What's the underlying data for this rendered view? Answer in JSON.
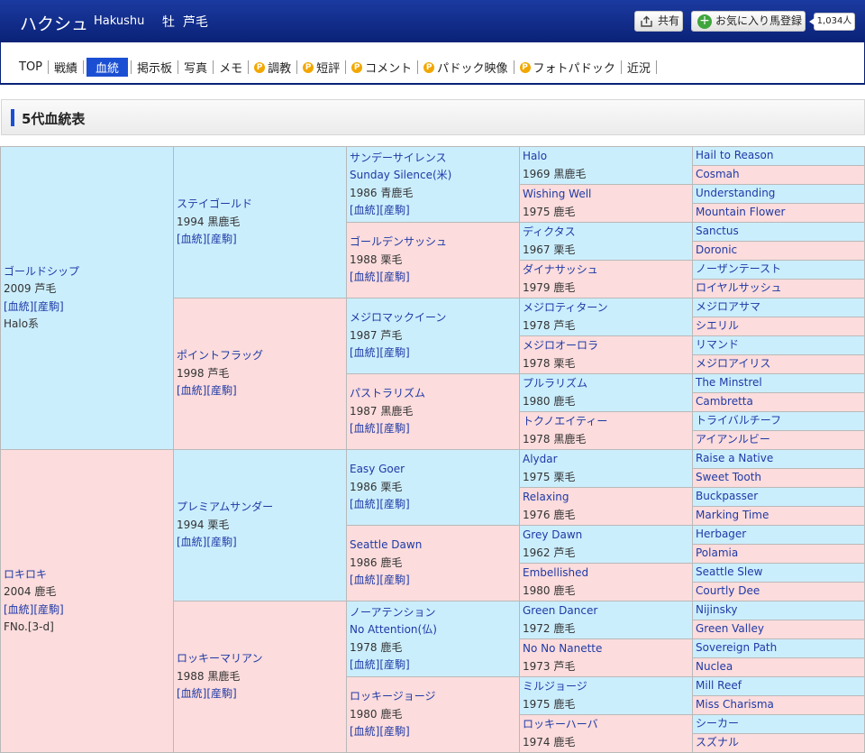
{
  "header": {
    "name_jp": "ハクシュ",
    "name_en": "Hakushu",
    "sex_color": "牡  芦毛",
    "share_label": "共有",
    "favorite_label": "お気に入り馬登録",
    "favorite_count": "1,034人"
  },
  "nav": {
    "items": [
      {
        "label": "TOP"
      },
      {
        "label": "戦績"
      },
      {
        "label": "血統"
      },
      {
        "label": "掲示板"
      },
      {
        "label": "写真"
      },
      {
        "label": "メモ"
      },
      {
        "label": "調教"
      },
      {
        "label": "短評"
      },
      {
        "label": "コメント"
      },
      {
        "label": "パドック映像"
      },
      {
        "label": "フォトパドック"
      },
      {
        "label": "近況"
      }
    ],
    "p_mark": "P"
  },
  "section_title": "5代血統表",
  "link_text": "[血統][産駒]",
  "colors": {
    "blue": "#cbeefd",
    "pink": "#fcdcdc",
    "link": "#1f3aa6",
    "header": "#0a2277"
  },
  "pedigree": {
    "g1": [
      {
        "name": "ゴールドシップ",
        "info": "2009 芦毛",
        "extra": "Halo系"
      },
      {
        "name": "ロキロキ",
        "info": "2004 鹿毛",
        "extra": "FNo.[3-d]"
      }
    ],
    "g2": [
      {
        "name": "ステイゴールド",
        "info": "1994 黒鹿毛"
      },
      {
        "name": "ポイントフラッグ",
        "info": "1998 芦毛"
      },
      {
        "name": "プレミアムサンダー",
        "info": "1994 栗毛"
      },
      {
        "name": "ロッキーマリアン",
        "info": "1988 黒鹿毛"
      }
    ],
    "g3": [
      {
        "name": "サンデーサイレンス",
        "name2": "Sunday Silence(米)",
        "info": "1986 青鹿毛"
      },
      {
        "name": "ゴールデンサッシュ",
        "info": "1988 栗毛"
      },
      {
        "name": "メジロマックイーン",
        "info": "1987 芦毛"
      },
      {
        "name": "パストラリズム",
        "info": "1987 黒鹿毛"
      },
      {
        "name": "Easy Goer",
        "info": "1986 栗毛"
      },
      {
        "name": "Seattle Dawn",
        "info": "1986 鹿毛"
      },
      {
        "name": "ノーアテンション",
        "name2": "No Attention(仏)",
        "info": "1978 鹿毛"
      },
      {
        "name": "ロッキージョージ",
        "info": "1980 鹿毛"
      }
    ],
    "g4": [
      {
        "name": "Halo",
        "info": "1969 黒鹿毛"
      },
      {
        "name": "Wishing Well",
        "info": "1975 鹿毛"
      },
      {
        "name": "ディクタス",
        "info": "1967 栗毛"
      },
      {
        "name": "ダイナサッシュ",
        "info": "1979 鹿毛"
      },
      {
        "name": "メジロティターン",
        "info": "1978 芦毛"
      },
      {
        "name": "メジロオーロラ",
        "info": "1978 栗毛"
      },
      {
        "name": "プルラリズム",
        "info": "1980 鹿毛"
      },
      {
        "name": "トクノエイティー",
        "info": "1978 黒鹿毛"
      },
      {
        "name": "Alydar",
        "info": "1975 栗毛"
      },
      {
        "name": "Relaxing",
        "info": "1976 鹿毛"
      },
      {
        "name": "Grey Dawn",
        "info": "1962 芦毛"
      },
      {
        "name": "Embellished",
        "info": "1980 鹿毛"
      },
      {
        "name": "Green Dancer",
        "info": "1972 鹿毛"
      },
      {
        "name": "No No Nanette",
        "info": "1973 芦毛"
      },
      {
        "name": "ミルジョージ",
        "info": "1975 鹿毛"
      },
      {
        "name": "ロッキーハーバ",
        "info": "1974 鹿毛"
      }
    ],
    "g5": [
      "Hail to Reason",
      "Cosmah",
      "Understanding",
      "Mountain Flower",
      "Sanctus",
      "Doronic",
      "ノーザンテースト",
      "ロイヤルサッシュ",
      "メジロアサマ",
      "シエリル",
      "リマンド",
      "メジロアイリス",
      "The Minstrel",
      "Cambretta",
      "トライバルチーフ",
      "アイアンルビー",
      "Raise a Native",
      "Sweet Tooth",
      "Buckpasser",
      "Marking Time",
      "Herbager",
      "Polamia",
      "Seattle Slew",
      "Courtly Dee",
      "Nijinsky",
      "Green Valley",
      "Sovereign Path",
      "Nuclea",
      "Mill Reef",
      "Miss Charisma",
      "シーカー",
      "スズナル"
    ]
  }
}
